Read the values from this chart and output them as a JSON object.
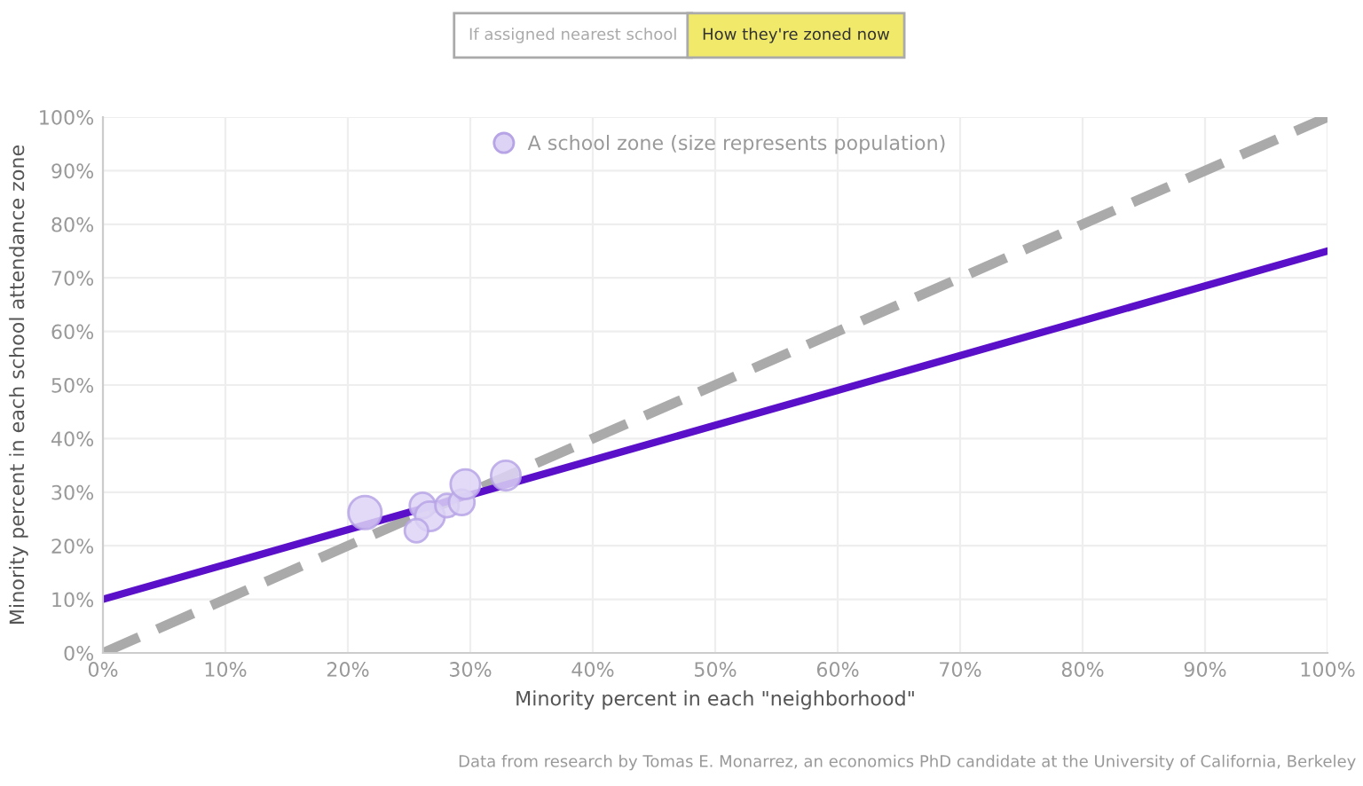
{
  "chart_data": {
    "type": "bubble",
    "annotations": [
      "If assigned nearest school",
      "How they're zoned now",
      "Data from research by Tomas E. Monarrez, an economics PhD candidate at the University of California, Berkeley"
    ],
    "xlabel": "Minority percent in each \"neighborhood\"",
    "ylabel": "Minority percent in each school attendance zone",
    "xlim": [
      0,
      100
    ],
    "ylim": [
      0,
      100
    ],
    "xticks": [
      {
        "value": 0,
        "label": "0%"
      },
      {
        "value": 10,
        "label": "10%"
      },
      {
        "value": 20,
        "label": "20%"
      },
      {
        "value": 30,
        "label": "30%"
      },
      {
        "value": 40,
        "label": "40%"
      },
      {
        "value": 50,
        "label": "50%"
      },
      {
        "value": 60,
        "label": "60%"
      },
      {
        "value": 70,
        "label": "70%"
      },
      {
        "value": 80,
        "label": "80%"
      },
      {
        "value": 90,
        "label": "90%"
      },
      {
        "value": 100,
        "label": "100%"
      }
    ],
    "yticks": [
      {
        "value": 0,
        "label": "0%"
      },
      {
        "value": 10,
        "label": "10%"
      },
      {
        "value": 20,
        "label": "20%"
      },
      {
        "value": 30,
        "label": "30%"
      },
      {
        "value": 40,
        "label": "40%"
      },
      {
        "value": 50,
        "label": "50%"
      },
      {
        "value": 60,
        "label": "60%"
      },
      {
        "value": 70,
        "label": "70%"
      },
      {
        "value": 80,
        "label": "80%"
      },
      {
        "value": 90,
        "label": "90%"
      },
      {
        "value": 100,
        "label": "100%"
      }
    ],
    "grid": true,
    "legend": "top",
    "series": [
      {
        "type": "line",
        "color": "#aaaaaa",
        "line_style": "dashed",
        "x": [
          0,
          100
        ],
        "values": [
          0,
          100
        ]
      },
      {
        "type": "line",
        "color": "#5a10c8",
        "line_style": "solid",
        "x": [
          0,
          100
        ],
        "values": [
          10,
          75
        ]
      },
      {
        "name": "A school zone (size represents population)",
        "color": "#ddd3f5",
        "x": [
          21.4,
          26.1,
          26.7,
          25.6,
          28.1,
          29.3,
          29.6,
          32.9
        ],
        "values": [
          26.2,
          27.5,
          25.5,
          22.8,
          27.5,
          28.1,
          31.5,
          33.1
        ],
        "sizes": [
          1,
          0.6,
          0.8,
          0.5,
          0.5,
          0.6,
          0.8,
          0.8
        ]
      }
    ]
  }
}
